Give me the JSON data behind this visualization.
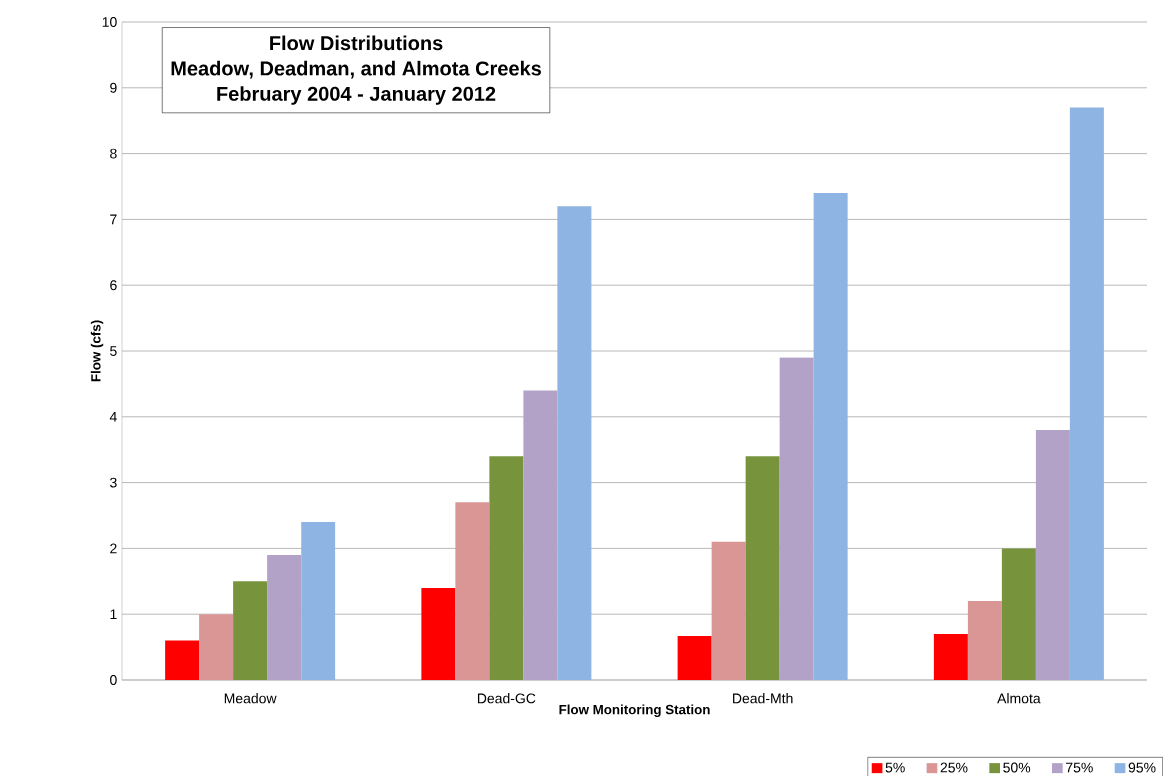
{
  "chart_data": {
    "type": "bar",
    "title": "Flow Distributions",
    "subtitle": "Meadow, Deadman, and Almota Creeks",
    "annotations": [
      "February 2004 - January 2012"
    ],
    "xlabel": "Flow Monitoring Station",
    "ylabel": "Flow (cfs)",
    "categories": [
      "Meadow",
      "Dead-GC",
      "Dead-Mth",
      "Almota"
    ],
    "series": [
      {
        "name": "5%",
        "color": "#ff0000",
        "values": [
          0.6,
          1.4,
          0.67,
          0.7
        ]
      },
      {
        "name": "25%",
        "color": "#d99694",
        "values": [
          1.0,
          2.7,
          2.1,
          1.2
        ]
      },
      {
        "name": "50%",
        "color": "#77933c",
        "values": [
          1.5,
          3.4,
          3.4,
          2.0
        ]
      },
      {
        "name": "75%",
        "color": "#b3a2c7",
        "values": [
          1.9,
          4.4,
          4.9,
          3.8
        ]
      },
      {
        "name": "95%",
        "color": "#8eb4e3",
        "values": [
          2.4,
          7.2,
          7.4,
          8.7
        ]
      }
    ],
    "ylim": [
      0,
      10
    ],
    "yticks": [
      0,
      1,
      2,
      3,
      4,
      5,
      6,
      7,
      8,
      9,
      10
    ],
    "grid": "y",
    "legend": "bottom right"
  }
}
